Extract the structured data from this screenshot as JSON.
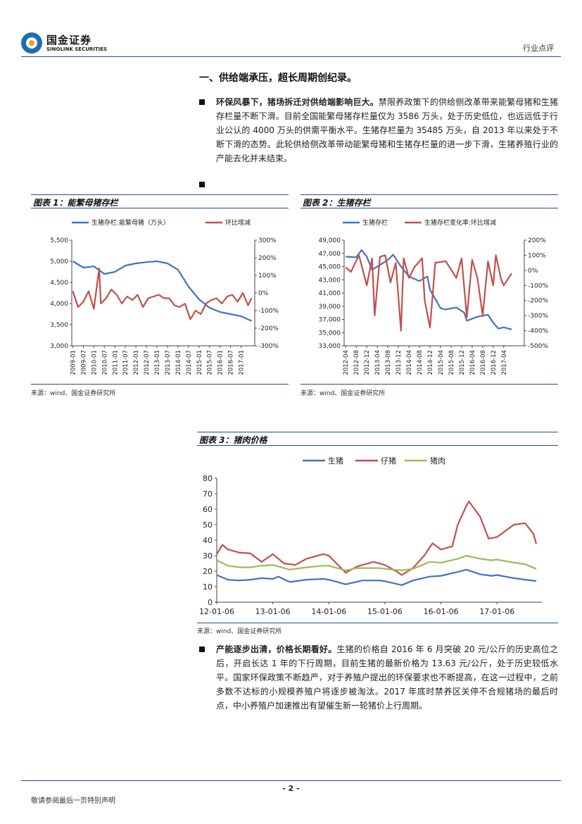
{
  "header": {
    "logo_cn": "国金证券",
    "logo_en": "SINOLINK SECURITIES",
    "tag": "行业点评"
  },
  "section": {
    "title": "一、供给端承压，超长周期创纪录。"
  },
  "paragraphs": [
    {
      "lead": "环保风暴下，猪场拆迁对供给端影响巨大。",
      "body": "禁限养政策下的供给侧改革带来能繁母猪和生猪存栏量不断下滑。目前全国能繁母猪存栏量仅为 3586 万头，处于历史低位，也远远低于行业公认的 4000 万头的供需平衡水平。生猪存栏量为 35485 万头，自 2013 年以来处于不断下滑的态势。此轮供给侧改革带动能繁母猪和生猪存栏量的进一步下滑，生猪养殖行业的产能去化并未结束。"
    },
    {
      "lead": "",
      "body": ""
    },
    {
      "lead": "产能逐步出清，价格长期看好。",
      "body": "生猪的价格自 2016 年 6 月突破 20 元/公斤的历史高位之后，开启长达 1 年的下行周期，目前生猪的最新价格为 13.63 元/公斤，处于历史较低水平。国家环保政策不断趋严，对于养殖户提出的环保要求也不断提高，在这一过程中，之前多数不达标的小规模养殖户将逐步被淘汰。2017 年底时禁养区关停不合规猪场的最后时点，中小养殖户加速推出有望催生新一轮猪价上行周期。"
    }
  ],
  "figures": [
    {
      "title": "图表 1：能繁母猪存栏",
      "source": "来源：wind、国金证券研究所"
    },
    {
      "title": "图表 2：生猪存栏",
      "source": "来源：wind、国金证券研究所"
    },
    {
      "title": "图表 3：猪肉价格",
      "source": "来源：wind、国金证券研究所"
    }
  ],
  "chart_data": [
    {
      "type": "line",
      "series": [
        {
          "name": "生猪存栏:能繁母猪（万头）",
          "axis": "left",
          "color": "#4472c4",
          "points": [
            [
              "2009-01",
              5000
            ],
            [
              "2009-07",
              4850
            ],
            [
              "2010-01",
              4880
            ],
            [
              "2010-07",
              4700
            ],
            [
              "2011-01",
              4750
            ],
            [
              "2011-07",
              4900
            ],
            [
              "2012-01",
              4950
            ],
            [
              "2012-07",
              4980
            ],
            [
              "2013-01",
              5000
            ],
            [
              "2013-07",
              4950
            ],
            [
              "2014-01",
              4800
            ],
            [
              "2014-07",
              4400
            ],
            [
              "2015-01",
              4100
            ],
            [
              "2015-07",
              3900
            ],
            [
              "2016-01",
              3800
            ],
            [
              "2016-07",
              3750
            ],
            [
              "2017-01",
              3700
            ],
            [
              "2017-07",
              3586
            ]
          ]
        },
        {
          "name": "环比增减",
          "axis": "right",
          "color": "#c0504d",
          "points": [
            [
              "2009-01",
              10
            ],
            [
              "2009-04",
              -80
            ],
            [
              "2009-07",
              -50
            ],
            [
              "2009-10",
              10
            ],
            [
              "2010-01",
              -90
            ],
            [
              "2010-04",
              140
            ],
            [
              "2010-05",
              -60
            ],
            [
              "2010-08",
              -30
            ],
            [
              "2010-11",
              20
            ],
            [
              "2011-02",
              -10
            ],
            [
              "2011-05",
              -60
            ],
            [
              "2011-08",
              -20
            ],
            [
              "2011-11",
              -40
            ],
            [
              "2012-02",
              -10
            ],
            [
              "2012-05",
              -80
            ],
            [
              "2012-08",
              -30
            ],
            [
              "2012-11",
              -20
            ],
            [
              "2013-02",
              -10
            ],
            [
              "2013-05",
              -30
            ],
            [
              "2013-08",
              -30
            ],
            [
              "2013-11",
              -70
            ],
            [
              "2014-02",
              -80
            ],
            [
              "2014-05",
              -60
            ],
            [
              "2014-08",
              -150
            ],
            [
              "2014-11",
              -100
            ],
            [
              "2015-02",
              -120
            ],
            [
              "2015-05",
              -60
            ],
            [
              "2015-08",
              -40
            ],
            [
              "2015-11",
              -30
            ],
            [
              "2016-02",
              -60
            ],
            [
              "2016-05",
              -20
            ],
            [
              "2016-08",
              -10
            ],
            [
              "2016-11",
              -50
            ],
            [
              "2017-02",
              0
            ],
            [
              "2017-05",
              -70
            ],
            [
              "2017-07",
              -30
            ]
          ]
        }
      ],
      "x_ticks": [
        "2009-01",
        "2009-07",
        "2010-01",
        "2010-07",
        "2011-01",
        "2011-07",
        "2012-01",
        "2012-07",
        "2013-01",
        "2013-07",
        "2014-01",
        "2014-07",
        "2015-01",
        "2015-07",
        "2016-01",
        "2016-07",
        "2017-01"
      ],
      "y_left": {
        "ticks": [
          "3,000",
          "3,500",
          "4,000",
          "4,500",
          "5,000",
          "5,500"
        ],
        "range": [
          3000,
          5500
        ]
      },
      "y_right": {
        "ticks": [
          "-300%",
          "-200%",
          "-100%",
          "0%",
          "100%",
          "200%",
          "300%"
        ],
        "range": [
          -300,
          300
        ]
      }
    },
    {
      "type": "line",
      "series": [
        {
          "name": "生猪存栏",
          "axis": "left",
          "color": "#4472c4",
          "points": [
            [
              "2012-04",
              46500
            ],
            [
              "2012-08",
              46400
            ],
            [
              "2012-10",
              47500
            ],
            [
              "2012-12",
              46500
            ],
            [
              "2013-02",
              44500
            ],
            [
              "2013-06",
              45500
            ],
            [
              "2013-08",
              46000
            ],
            [
              "2013-10",
              46800
            ],
            [
              "2014-01",
              45000
            ],
            [
              "2014-04",
              43500
            ],
            [
              "2014-08",
              42800
            ],
            [
              "2014-11",
              43500
            ],
            [
              "2014-12",
              41500
            ],
            [
              "2015-04",
              38700
            ],
            [
              "2015-06",
              38500
            ],
            [
              "2015-10",
              38800
            ],
            [
              "2016-01",
              38000
            ],
            [
              "2016-02",
              36800
            ],
            [
              "2016-06",
              37400
            ],
            [
              "2016-10",
              37700
            ],
            [
              "2016-12",
              36500
            ],
            [
              "2017-02",
              35600
            ],
            [
              "2017-04",
              35800
            ],
            [
              "2017-07",
              35485
            ]
          ]
        },
        {
          "name": "生猪存栏变化率:环比增减",
          "axis": "right",
          "color": "#c0504d",
          "points": [
            [
              "2012-04",
              20
            ],
            [
              "2012-06",
              -10
            ],
            [
              "2012-09",
              100
            ],
            [
              "2012-12",
              -100
            ],
            [
              "2013-02",
              80
            ],
            [
              "2013-03",
              -300
            ],
            [
              "2013-05",
              90
            ],
            [
              "2013-07",
              100
            ],
            [
              "2013-09",
              -80
            ],
            [
              "2013-11",
              50
            ],
            [
              "2014-01",
              -400
            ],
            [
              "2014-02",
              80
            ],
            [
              "2014-04",
              -50
            ],
            [
              "2014-06",
              20
            ],
            [
              "2014-09",
              80
            ],
            [
              "2014-10",
              -200
            ],
            [
              "2014-12",
              -380
            ],
            [
              "2015-02",
              50
            ],
            [
              "2015-06",
              60
            ],
            [
              "2015-10",
              -50
            ],
            [
              "2015-12",
              80
            ],
            [
              "2016-02",
              -310
            ],
            [
              "2016-04",
              70
            ],
            [
              "2016-06",
              -50
            ],
            [
              "2016-08",
              -300
            ],
            [
              "2016-10",
              60
            ],
            [
              "2016-12",
              -100
            ],
            [
              "2017-01",
              100
            ],
            [
              "2017-03",
              -60
            ],
            [
              "2017-04",
              -100
            ],
            [
              "2017-07",
              -20
            ]
          ]
        }
      ],
      "x_ticks": [
        "2012-04",
        "2012-08",
        "2012-12",
        "2013-04",
        "2013-08",
        "2013-12",
        "2014-04",
        "2014-08",
        "2014-12",
        "2015-04",
        "2015-08",
        "2015-12",
        "2016-04",
        "2016-08",
        "2016-12",
        "2017-04"
      ],
      "y_left": {
        "ticks": [
          "33,000",
          "35,000",
          "37,000",
          "39,000",
          "41,000",
          "43,000",
          "45,000",
          "47,000",
          "49,000"
        ],
        "range": [
          33000,
          49000
        ]
      },
      "y_right": {
        "ticks": [
          "-500%",
          "-400%",
          "-300%",
          "-200%",
          "-100%",
          "0%",
          "100%",
          "200%"
        ],
        "range": [
          -500,
          200
        ]
      }
    },
    {
      "type": "line",
      "series": [
        {
          "name": "生猪",
          "color": "#4472c4",
          "points": [
            [
              2012.0,
              17.5
            ],
            [
              2012.2,
              14.5
            ],
            [
              2012.4,
              14
            ],
            [
              2012.6,
              14.5
            ],
            [
              2012.8,
              15.5
            ],
            [
              2013.0,
              15
            ],
            [
              2013.1,
              16.5
            ],
            [
              2013.3,
              13
            ],
            [
              2013.6,
              14.5
            ],
            [
              2013.9,
              15
            ],
            [
              2014.0,
              14.5
            ],
            [
              2014.3,
              11.5
            ],
            [
              2014.6,
              14
            ],
            [
              2014.9,
              14
            ],
            [
              2015.0,
              13.5
            ],
            [
              2015.3,
              11
            ],
            [
              2015.5,
              14
            ],
            [
              2015.8,
              16.5
            ],
            [
              2016.0,
              17
            ],
            [
              2016.3,
              19.5
            ],
            [
              2016.45,
              21
            ],
            [
              2016.7,
              18
            ],
            [
              2016.9,
              17
            ],
            [
              2017.0,
              17.5
            ],
            [
              2017.3,
              15.5
            ],
            [
              2017.5,
              14.5
            ],
            [
              2017.7,
              13.63
            ]
          ]
        },
        {
          "name": "仔猪",
          "color": "#c0504d",
          "points": [
            [
              2012.0,
              31
            ],
            [
              2012.1,
              37
            ],
            [
              2012.2,
              34
            ],
            [
              2012.4,
              32
            ],
            [
              2012.6,
              31.5
            ],
            [
              2012.8,
              26
            ],
            [
              2013.0,
              31
            ],
            [
              2013.2,
              25
            ],
            [
              2013.4,
              24
            ],
            [
              2013.6,
              28
            ],
            [
              2013.9,
              31
            ],
            [
              2014.0,
              30
            ],
            [
              2014.3,
              19
            ],
            [
              2014.5,
              23
            ],
            [
              2014.8,
              26
            ],
            [
              2015.0,
              24
            ],
            [
              2015.2,
              20
            ],
            [
              2015.3,
              17.5
            ],
            [
              2015.5,
              22
            ],
            [
              2015.7,
              30
            ],
            [
              2015.85,
              38
            ],
            [
              2016.0,
              34
            ],
            [
              2016.2,
              36
            ],
            [
              2016.3,
              50
            ],
            [
              2016.45,
              62
            ],
            [
              2016.5,
              65
            ],
            [
              2016.7,
              55
            ],
            [
              2016.85,
              41
            ],
            [
              2017.0,
              42
            ],
            [
              2017.3,
              50
            ],
            [
              2017.5,
              51
            ],
            [
              2017.65,
              44
            ],
            [
              2017.7,
              37.5
            ]
          ]
        },
        {
          "name": "猪肉",
          "color": "#9bbb59",
          "points": [
            [
              2012.0,
              27
            ],
            [
              2012.2,
              23.5
            ],
            [
              2012.4,
              22.5
            ],
            [
              2012.6,
              22.5
            ],
            [
              2012.8,
              23.5
            ],
            [
              2013.0,
              24
            ],
            [
              2013.3,
              21
            ],
            [
              2013.6,
              22.5
            ],
            [
              2013.9,
              23.5
            ],
            [
              2014.0,
              23.5
            ],
            [
              2014.3,
              20.5
            ],
            [
              2014.5,
              22
            ],
            [
              2014.9,
              22
            ],
            [
              2015.0,
              21.5
            ],
            [
              2015.3,
              20.5
            ],
            [
              2015.5,
              21.5
            ],
            [
              2015.8,
              26
            ],
            [
              2016.0,
              25.5
            ],
            [
              2016.3,
              28
            ],
            [
              2016.45,
              30
            ],
            [
              2016.7,
              28
            ],
            [
              2016.9,
              27
            ],
            [
              2017.0,
              27.5
            ],
            [
              2017.3,
              25.5
            ],
            [
              2017.5,
              24.5
            ],
            [
              2017.7,
              21.5
            ]
          ]
        }
      ],
      "x_ticks": [
        "12-01-06",
        "13-01-06",
        "14-01-06",
        "15-01-06",
        "16-01-06",
        "17-01-06"
      ],
      "y_ticks": [
        "0",
        "10",
        "20",
        "30",
        "40",
        "50",
        "60",
        "70",
        "80"
      ],
      "ylim": [
        0,
        80
      ]
    }
  ],
  "footer": {
    "page": "- 2 -",
    "disclaimer": "敬请参阅最后一页特别声明"
  }
}
